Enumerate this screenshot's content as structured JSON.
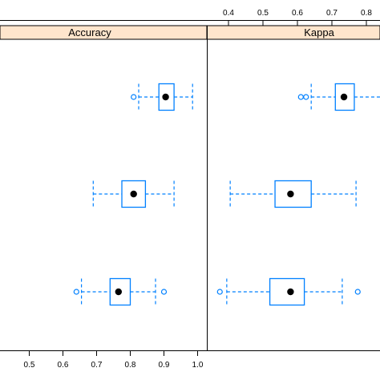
{
  "chart_data": {
    "type": "boxplot",
    "colors": {
      "strip": "#ffe5cc",
      "box": "#0080ff",
      "median": "#000000",
      "frame": "#000000"
    },
    "panels": [
      {
        "name": "Accuracy",
        "xlim": [
          0.3,
          1.05
        ],
        "ticks": [
          0.5,
          0.6,
          0.7,
          0.8,
          0.9,
          1.0
        ],
        "tick_labels": [
          "0.5",
          "0.6",
          "0.7",
          "0.8",
          "0.9",
          "1.0"
        ],
        "tick_side": "bottom",
        "boxes": [
          {
            "q1": 0.885,
            "median": 0.905,
            "q3": 0.93,
            "whisker_low": 0.825,
            "whisker_high": 0.985,
            "outliers": [
              0.81
            ]
          },
          {
            "q1": 0.775,
            "median": 0.81,
            "q3": 0.845,
            "whisker_low": 0.69,
            "whisker_high": 0.93,
            "outliers": []
          },
          {
            "q1": 0.74,
            "median": 0.765,
            "q3": 0.8,
            "whisker_low": 0.655,
            "whisker_high": 0.875,
            "outliers": [
              0.64,
              0.9
            ]
          }
        ]
      },
      {
        "name": "Kappa",
        "xlim": [
          0.3,
          0.85
        ],
        "ticks": [
          0.4,
          0.5,
          0.6,
          0.7,
          0.8
        ],
        "tick_labels": [
          "0.4",
          "0.5",
          "0.6",
          "0.7",
          "0.8"
        ],
        "tick_side": "top",
        "boxes": [
          {
            "q1": 0.71,
            "median": 0.735,
            "q3": 0.765,
            "whisker_low": 0.64,
            "whisker_high": 0.85,
            "outliers": [
              0.61,
              0.625
            ]
          },
          {
            "q1": 0.535,
            "median": 0.58,
            "q3": 0.64,
            "whisker_low": 0.405,
            "whisker_high": 0.77,
            "outliers": []
          },
          {
            "q1": 0.52,
            "median": 0.58,
            "q3": 0.62,
            "whisker_low": 0.395,
            "whisker_high": 0.73,
            "outliers": [
              0.375,
              0.775
            ]
          }
        ]
      }
    ]
  }
}
